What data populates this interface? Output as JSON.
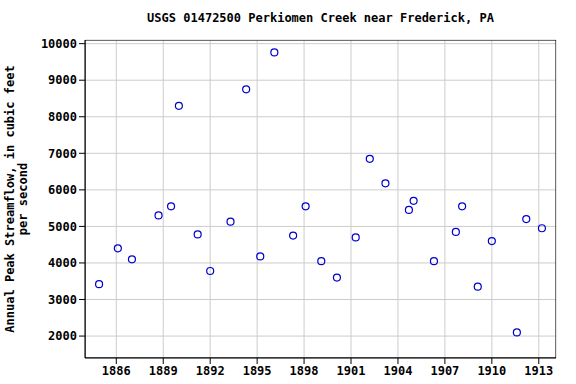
{
  "chart_data": {
    "type": "scatter",
    "title": "USGS 01472500 Perkiomen Creek near Frederick, PA",
    "y_label": "Annual Peak Streamflow, in cubic feet per second",
    "x": [
      1884.9,
      1886.1,
      1887.0,
      1888.7,
      1889.5,
      1890.0,
      1891.2,
      1892.0,
      1893.3,
      1894.3,
      1895.2,
      1896.1,
      1897.3,
      1898.1,
      1899.1,
      1900.1,
      1901.3,
      1902.2,
      1903.2,
      1904.7,
      1905.0,
      1906.3,
      1907.7,
      1908.1,
      1909.1,
      1910.0,
      1911.6,
      1912.2,
      1913.2
    ],
    "values": [
      3420,
      4400,
      4100,
      5300,
      5550,
      8300,
      4780,
      3780,
      5130,
      8750,
      4180,
      9760,
      4750,
      5550,
      4050,
      3600,
      4700,
      6850,
      6180,
      5450,
      5700,
      4050,
      4850,
      5550,
      3350,
      4600,
      2100,
      5200,
      4950
    ],
    "color": "#0000cc",
    "marker": "open_circle",
    "xlim": [
      1884,
      1914.1
    ],
    "ylim": [
      1400,
      10100
    ],
    "xticks": [
      1886,
      1889,
      1892,
      1895,
      1898,
      1901,
      1904,
      1907,
      1910,
      1913
    ],
    "yticks": [
      2000,
      3000,
      4000,
      5000,
      6000,
      7000,
      8000,
      9000,
      10000
    ],
    "grid": true
  }
}
